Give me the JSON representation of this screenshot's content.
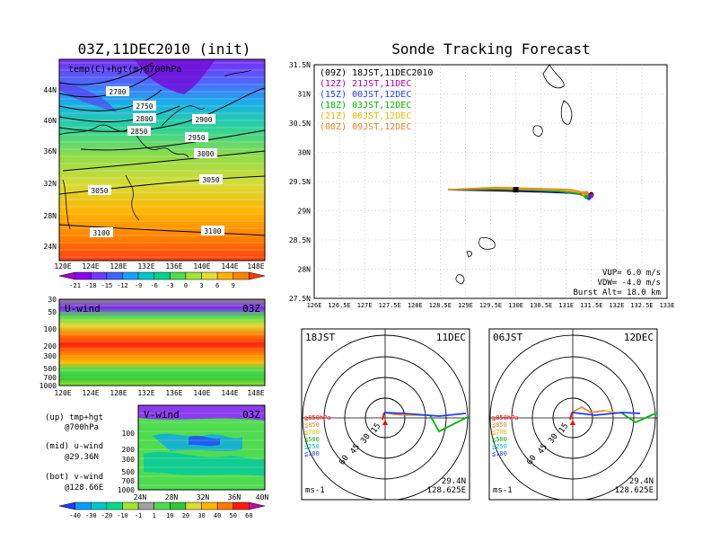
{
  "titles": {
    "left": "03Z,11DEC2010 (init)",
    "right": "Sonde Tracking Forecast"
  },
  "map_panel": {
    "label": "temp(C)+hgt(m)@700hPa",
    "lat_labels": [
      "44N",
      "40N",
      "36N",
      "32N",
      "28N",
      "24N"
    ],
    "lon_labels": [
      "120E",
      "124E",
      "128E",
      "132E",
      "136E",
      "140E",
      "144E",
      "148E"
    ],
    "contours": [
      {
        "label": "2700"
      },
      {
        "label": "2750"
      },
      {
        "label": "2800"
      },
      {
        "label": "2850"
      },
      {
        "label": "2900"
      },
      {
        "label": "2950"
      },
      {
        "label": "3000"
      },
      {
        "label": "3050"
      },
      {
        "label": "3050"
      },
      {
        "label": "3100"
      },
      {
        "label": "3100"
      }
    ],
    "colorbar_labels": [
      "-21",
      "-18",
      "-15",
      "-12",
      "-9",
      "-6",
      "-3",
      "0",
      "3",
      "6",
      "9"
    ],
    "colorbar_colors": [
      "#a000c8",
      "#8c00f0",
      "#6e3cff",
      "#3c64ff",
      "#18a0ff",
      "#00c8c8",
      "#00d28c",
      "#50dc50",
      "#a0e632",
      "#e6dc32",
      "#ffb400",
      "#ff8200",
      "#ff3c00"
    ]
  },
  "u_panel": {
    "label": "U-wind",
    "time": "03Z",
    "p_labels": [
      "30",
      "50",
      "100",
      "200",
      "300",
      "500",
      "700",
      "1000"
    ],
    "lon_labels": [
      "120E",
      "124E",
      "128E",
      "132E",
      "136E",
      "140E",
      "144E",
      "148E"
    ]
  },
  "v_panel": {
    "label": "V-wind",
    "time": "03Z",
    "p_labels": [
      "100",
      "200",
      "300",
      "500",
      "700",
      "1000"
    ],
    "lat_labels": [
      "24N",
      "28N",
      "32N",
      "36N",
      "40N"
    ]
  },
  "notes": {
    "up1": "(up) tmp+hgt",
    "up2": "@700hPa",
    "mid1": "(mid) u-wind",
    "mid2": "@29.36N",
    "bot1": "(bot) v-wind",
    "bot2": "@128.66E"
  },
  "wind_colorbar": {
    "labels": [
      "-40",
      "-30",
      "-20",
      "-10",
      "-1",
      "1",
      "10",
      "20",
      "30",
      "40",
      "50",
      "60"
    ],
    "colors": [
      "#1e3cff",
      "#00a0ff",
      "#00c8c8",
      "#00dc8c",
      "#a0e632",
      "#a0a0a0",
      "#50dc50",
      "#32c832",
      "#dcdc32",
      "#ffb400",
      "#ff7800",
      "#ff1e00",
      "#c800a0"
    ]
  },
  "track_map": {
    "legend": [
      {
        "text": "(09Z)  18JST,11DEC2010",
        "color": "#000000"
      },
      {
        "text": "(12Z)  21JST,11DEC",
        "color": "#b400b4"
      },
      {
        "text": "(15Z)  00JST,12DEC",
        "color": "#1e3cff"
      },
      {
        "text": "(18Z)  03JST,12DEC",
        "color": "#00b400"
      },
      {
        "text": "(21Z)  06JST,12DEC",
        "color": "#f0b400"
      },
      {
        "text": "(00Z)  09JST,12DEC",
        "color": "#f08228"
      }
    ],
    "lat_labels": [
      "31.5N",
      "31N",
      "30.5N",
      "30N",
      "29.5N",
      "29N",
      "28.5N",
      "28N",
      "27.5N"
    ],
    "lon_labels": [
      "126E",
      "126.5E",
      "127E",
      "127.5E",
      "128E",
      "128.5E",
      "129E",
      "129.5E",
      "130E",
      "130.5E",
      "131E",
      "131.5E",
      "132E",
      "132.5E",
      "133E"
    ],
    "vup": "VUP=  6.0  m/s",
    "vdw": "VDW= -4.0  m/s",
    "burst": "Burst Alt=  18.0  km"
  },
  "chart_data": {
    "type": "line",
    "title": "Sonde Tracking Forecast",
    "xlabel": "",
    "ylabel": "",
    "xlim": [
      126,
      133
    ],
    "ylim": [
      27.5,
      31.5
    ],
    "series": [
      {
        "name": "(09Z) 18JST,11DEC2010",
        "color": "#000000",
        "x": [
          128.66,
          129.2,
          129.8,
          130.6,
          131.2,
          131.5
        ],
        "y": [
          29.36,
          29.35,
          29.34,
          29.32,
          29.3,
          29.28
        ]
      },
      {
        "name": "(12Z) 21JST,11DEC",
        "color": "#b400b4",
        "x": [
          128.66,
          129.3,
          130.0,
          130.8,
          131.3,
          131.5
        ],
        "y": [
          29.36,
          29.36,
          29.35,
          29.33,
          29.3,
          29.26
        ]
      },
      {
        "name": "(15Z) 00JST,12DEC",
        "color": "#1e3cff",
        "x": [
          128.66,
          129.4,
          130.2,
          130.9,
          131.3,
          131.45
        ],
        "y": [
          29.36,
          29.37,
          29.35,
          29.32,
          29.28,
          29.22
        ]
      },
      {
        "name": "(18Z) 03JST,12DEC",
        "color": "#00b400",
        "x": [
          128.66,
          129.4,
          130.1,
          130.8,
          131.2,
          131.4
        ],
        "y": [
          29.36,
          29.37,
          29.36,
          29.34,
          29.3,
          29.24
        ]
      },
      {
        "name": "(21Z) 06JST,12DEC",
        "color": "#f0b400",
        "x": [
          128.66,
          129.5,
          130.3,
          131.0,
          131.35
        ],
        "y": [
          29.36,
          29.39,
          29.37,
          29.35,
          29.3
        ]
      },
      {
        "name": "(00Z) 09JST,12DEC",
        "color": "#f08228",
        "x": [
          128.66,
          129.6,
          130.4,
          131.1,
          131.4
        ],
        "y": [
          29.36,
          29.4,
          29.38,
          29.36,
          29.3
        ]
      }
    ]
  },
  "hodographs": [
    {
      "time": "18JST",
      "date": "11DEC",
      "lat": "29.4N",
      "lon": "128.625E",
      "unit": "ms-1",
      "legend": [
        "≧850hPa",
        "≦850",
        "≦700",
        "≦500",
        "≦250",
        "≦100"
      ],
      "legend_colors": [
        "#ff0000",
        "#f08228",
        "#f0b400",
        "#00b400",
        "#00c8c8",
        "#1e3cff"
      ],
      "rings": [
        "15",
        "30",
        "45",
        "60"
      ]
    },
    {
      "time": "06JST",
      "date": "12DEC",
      "lat": "29.4N",
      "lon": "128.625E",
      "unit": "ms-1",
      "legend": [
        "≧850hPa",
        "≦850",
        "≦700",
        "≦500",
        "≦250",
        "≦100"
      ],
      "legend_colors": [
        "#ff0000",
        "#f08228",
        "#f0b400",
        "#00b400",
        "#00c8c8",
        "#1e3cff"
      ],
      "rings": [
        "15",
        "30",
        "45",
        "60"
      ]
    }
  ]
}
